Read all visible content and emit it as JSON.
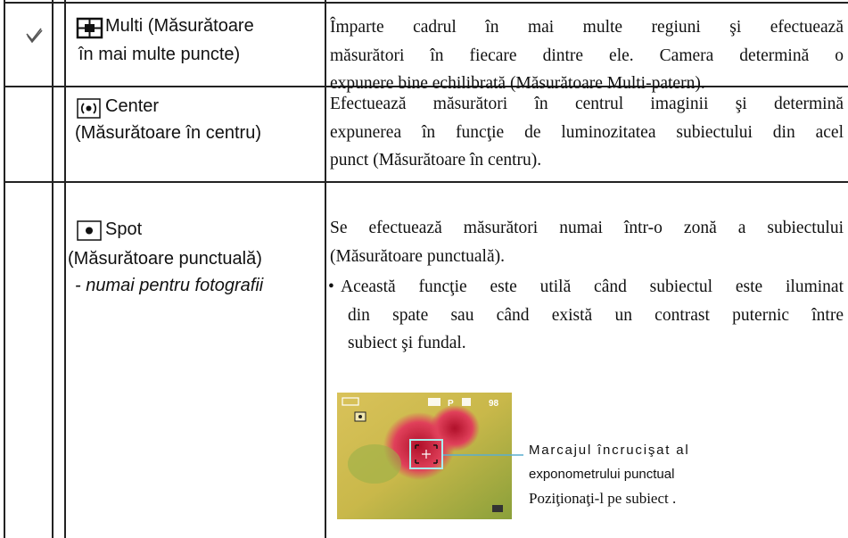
{
  "table": {
    "rows": [
      {
        "selected": true,
        "mode": {
          "lines": [
            "Multi (Măsurătoare",
            "în mai multe puncte)"
          ]
        },
        "description": {
          "paragraphs": [
            {
              "lines": [
                "Împarte cadrul în mai multe regiuni şi efectuează",
                "măsurători în fiecare dintre ele. Camera determină o",
                "expunere bine echilibrată (Măsurătoare Multi-patern)."
              ]
            }
          ]
        }
      },
      {
        "selected": false,
        "mode": {
          "lines": [
            "Center",
            "(Măsurătoare în centru)"
          ]
        },
        "description": {
          "paragraphs": [
            {
              "lines": [
                "Efectuează măsurători în centrul imaginii şi determină",
                "expunerea în funcţie de luminozitatea subiectului din acel",
                "punct (Măsurătoare în centru)."
              ]
            }
          ]
        }
      },
      {
        "selected": false,
        "mode": {
          "lines": [
            "Spot",
            "(Măsurătoare punctuală)"
          ],
          "note": "- numai pentru fotografii"
        },
        "description": {
          "paragraphs": [
            {
              "lines": [
                "Se efectuează măsurători numai într-o zonă a subiectului",
                "(Măsurătoare punctuală)."
              ]
            },
            {
              "bullet": "•",
              "lines": [
                "Această funcţie este utilă când subiectul este iluminat",
                "din spate sau când există un contrast puternic între",
                "subiect şi fundal."
              ]
            }
          ]
        },
        "figure": {
          "screen": {
            "mode": "P",
            "count": "98"
          },
          "callout": [
            "Marcajul încrucişat al",
            "exponometrului punctual",
            "Poziţionaţi-l pe subiect ."
          ]
        }
      }
    ]
  }
}
